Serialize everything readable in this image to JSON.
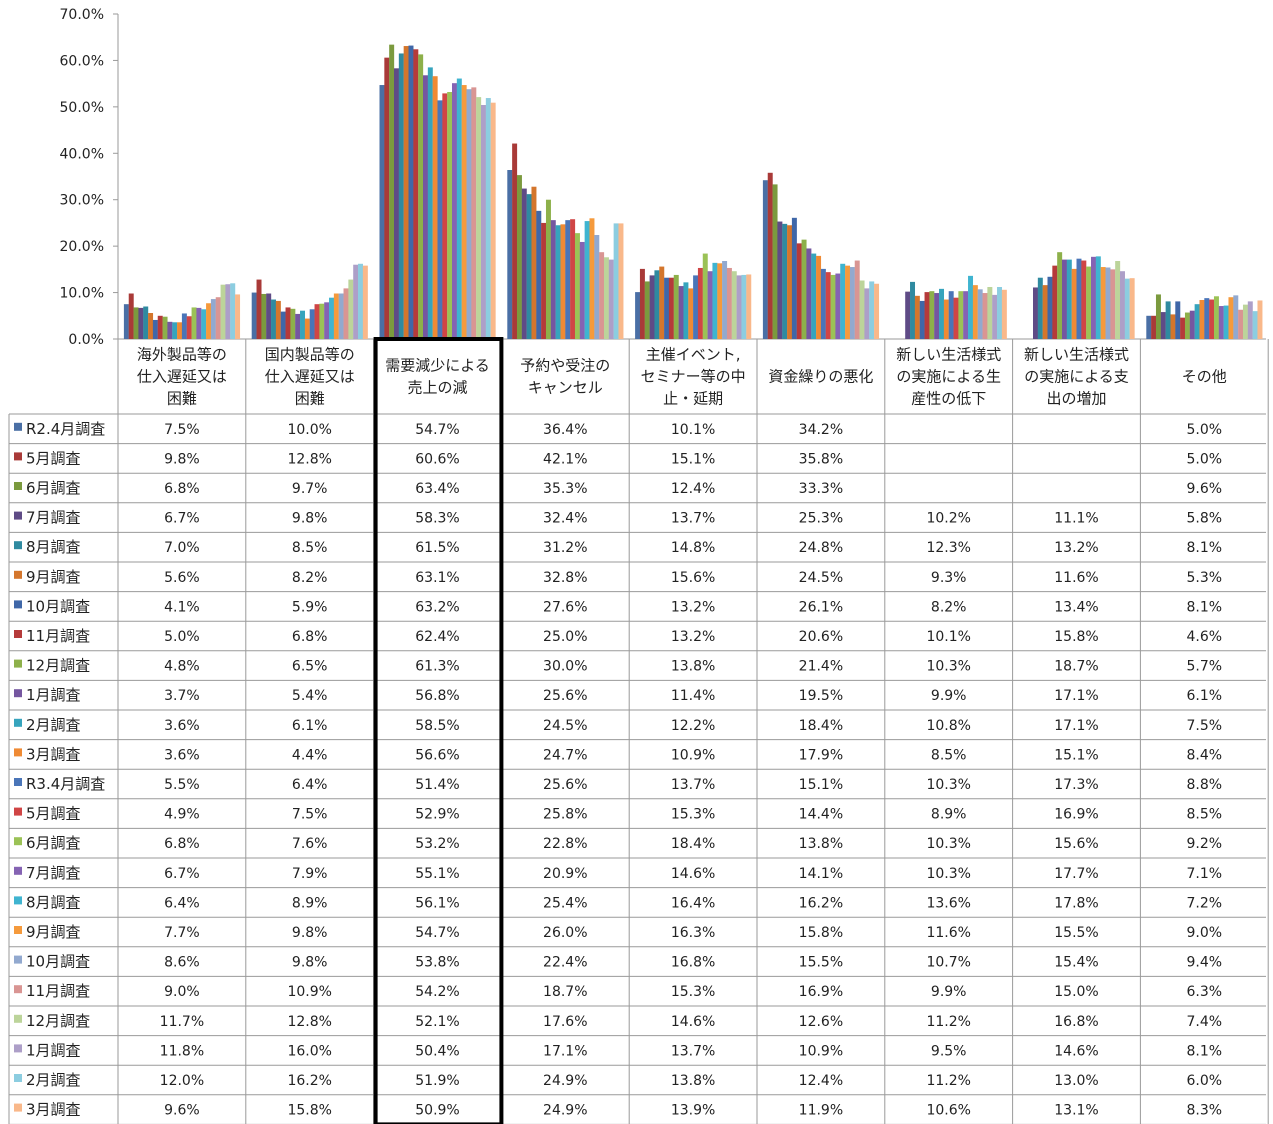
{
  "chart_data": {
    "type": "bar",
    "ylim": [
      0,
      70
    ],
    "yticks": [
      "0.0%",
      "10.0%",
      "20.0%",
      "30.0%",
      "40.0%",
      "50.0%",
      "60.0%",
      "70.0%"
    ],
    "categories": [
      [
        "海外製品等の",
        "仕入遅延又は",
        "困難"
      ],
      [
        "国内製品等の",
        "仕入遅延又は",
        "困難"
      ],
      [
        "需要減少による",
        "売上の減"
      ],
      [
        "予約や受注の",
        "キャンセル"
      ],
      [
        "主催イベント,",
        "セミナー等の中",
        "止・延期"
      ],
      [
        "資金繰りの悪化"
      ],
      [
        "新しい生活様式",
        "の実施による生",
        "産性の低下"
      ],
      [
        "新しい生活様式",
        "の実施による支",
        "出の増加"
      ],
      [
        "その他"
      ]
    ],
    "highlight_category": 2,
    "series": [
      {
        "name": "R2.4月調査",
        "color": "#4a6fa5",
        "values": [
          7.5,
          10.0,
          54.7,
          36.4,
          10.1,
          34.2,
          null,
          null,
          5.0
        ]
      },
      {
        "name": "5月調査",
        "color": "#a93a38",
        "values": [
          9.8,
          12.8,
          60.6,
          42.1,
          15.1,
          35.8,
          null,
          null,
          5.0
        ]
      },
      {
        "name": "6月調査",
        "color": "#7b9a3e",
        "values": [
          6.8,
          9.7,
          63.4,
          35.3,
          12.4,
          33.3,
          null,
          null,
          9.6
        ]
      },
      {
        "name": "7月調査",
        "color": "#5f4b86",
        "values": [
          6.7,
          9.8,
          58.3,
          32.4,
          13.7,
          25.3,
          10.2,
          11.1,
          5.8
        ]
      },
      {
        "name": "8月調査",
        "color": "#2f8aa0",
        "values": [
          7.0,
          8.5,
          61.5,
          31.2,
          14.8,
          24.8,
          12.3,
          13.2,
          8.1
        ]
      },
      {
        "name": "9月調査",
        "color": "#d4762c",
        "values": [
          5.6,
          8.2,
          63.1,
          32.8,
          15.6,
          24.5,
          9.3,
          11.6,
          5.3
        ]
      },
      {
        "name": "10月調査",
        "color": "#3f67a8",
        "values": [
          4.1,
          5.9,
          63.2,
          27.6,
          13.2,
          26.1,
          8.2,
          13.4,
          8.1
        ]
      },
      {
        "name": "11月調査",
        "color": "#b53a3a",
        "values": [
          5.0,
          6.8,
          62.4,
          25.0,
          13.2,
          20.6,
          10.1,
          15.8,
          4.6
        ]
      },
      {
        "name": "12月調査",
        "color": "#8db04a",
        "values": [
          4.8,
          6.5,
          61.3,
          30.0,
          13.8,
          21.4,
          10.3,
          18.7,
          5.7
        ]
      },
      {
        "name": "1月調査",
        "color": "#7556a0",
        "values": [
          3.7,
          5.4,
          56.8,
          25.6,
          11.4,
          19.5,
          9.9,
          17.1,
          6.1
        ]
      },
      {
        "name": "2月調査",
        "color": "#36a4bd",
        "values": [
          3.6,
          6.1,
          58.5,
          24.5,
          12.2,
          18.4,
          10.8,
          17.1,
          7.5
        ]
      },
      {
        "name": "3月調査",
        "color": "#ef8a34",
        "values": [
          3.6,
          4.4,
          56.6,
          24.7,
          10.9,
          17.9,
          8.5,
          15.1,
          8.4
        ]
      },
      {
        "name": "R3.4月調査",
        "color": "#4a75b8",
        "values": [
          5.5,
          6.4,
          51.4,
          25.6,
          13.7,
          15.1,
          10.3,
          17.3,
          8.8
        ]
      },
      {
        "name": "5月調査",
        "color": "#d04545",
        "values": [
          4.9,
          7.5,
          52.9,
          25.8,
          15.3,
          14.4,
          8.9,
          16.9,
          8.5
        ]
      },
      {
        "name": "6月調査",
        "color": "#9bc256",
        "values": [
          6.8,
          7.6,
          53.2,
          22.8,
          18.4,
          13.8,
          10.3,
          15.6,
          9.2
        ]
      },
      {
        "name": "7月調査",
        "color": "#8563b3",
        "values": [
          6.7,
          7.9,
          55.1,
          20.9,
          14.6,
          14.1,
          10.3,
          17.7,
          7.1
        ]
      },
      {
        "name": "8月調査",
        "color": "#3fb4d0",
        "values": [
          6.4,
          8.9,
          56.1,
          25.4,
          16.4,
          16.2,
          13.6,
          17.8,
          7.2
        ]
      },
      {
        "name": "9月調査",
        "color": "#f59a3c",
        "values": [
          7.7,
          9.8,
          54.7,
          26.0,
          16.3,
          15.8,
          11.6,
          15.5,
          9.0
        ]
      },
      {
        "name": "10月調査",
        "color": "#92a9cf",
        "values": [
          8.6,
          9.8,
          53.8,
          22.4,
          16.8,
          15.5,
          10.7,
          15.4,
          9.4
        ]
      },
      {
        "name": "11月調査",
        "color": "#d99593",
        "values": [
          9.0,
          10.9,
          54.2,
          18.7,
          15.3,
          16.9,
          9.9,
          15.0,
          6.3
        ]
      },
      {
        "name": "12月調査",
        "color": "#bcd49a",
        "values": [
          11.7,
          12.8,
          52.1,
          17.6,
          14.6,
          12.6,
          11.2,
          16.8,
          7.4
        ]
      },
      {
        "name": "1月調査",
        "color": "#ad9fc8",
        "values": [
          11.8,
          16.0,
          50.4,
          17.1,
          13.7,
          10.9,
          9.5,
          14.6,
          8.1
        ]
      },
      {
        "name": "2月調査",
        "color": "#8ccde0",
        "values": [
          12.0,
          16.2,
          51.9,
          24.9,
          13.8,
          12.4,
          11.2,
          13.0,
          6.0
        ]
      },
      {
        "name": "3月調査",
        "color": "#f9b88a",
        "values": [
          9.6,
          15.8,
          50.9,
          24.9,
          13.9,
          11.9,
          10.6,
          13.1,
          8.3
        ]
      }
    ]
  }
}
